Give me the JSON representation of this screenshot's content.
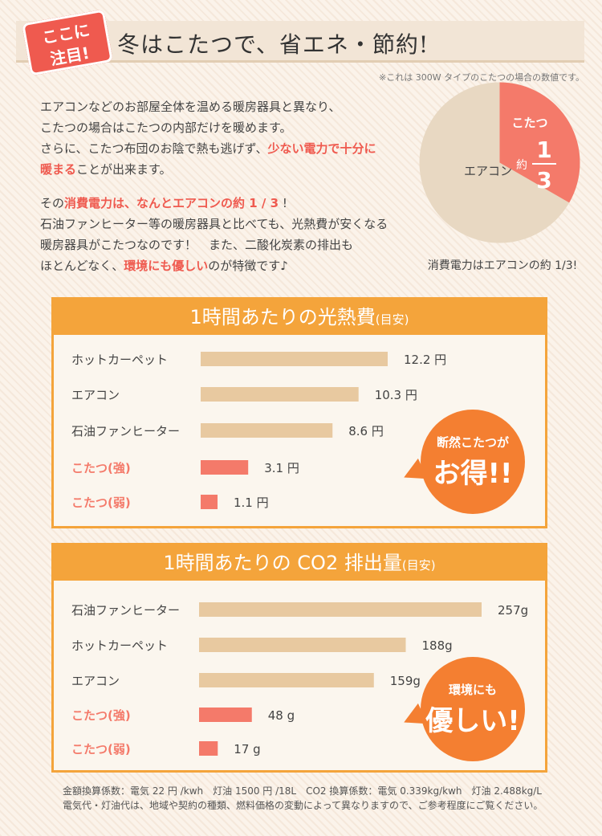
{
  "header": {
    "badge_line1": "ここに",
    "badge_line2": "注目!",
    "title": "冬はこたつで、省エネ・節約!",
    "note": "※これは 300W タイプのこたつの場合の数値です。"
  },
  "intro": {
    "p1_line1": "エアコンなどのお部屋全体を温める暖房器具と異なり、",
    "p1_line2": "こたつの場合はこたつの内部だけを暖めます。",
    "p1_line3a": "さらに、こたつ布団のお陰で熱も逃げず、",
    "p1_line3b": "少ない電力で十分に",
    "p1_line4a": "暖まる",
    "p1_line4b": "ことが出来ます。",
    "p2_line1a": "その",
    "p2_line1b": "消費電力は、なんとエアコンの約 1 / 3",
    "p2_line1c": " !",
    "p2_line2": "石油ファンヒーター等の暖房器具と比べても、光熱費が安くなる",
    "p2_line3": "暖房器具がこたつなのです！　また、二酸化炭素の排出も",
    "p2_line4a": "ほとんどなく、",
    "p2_line4b": "環境にも優しい",
    "p2_line4c": "のが特徴です♪"
  },
  "pie": {
    "base_label": "エアコン",
    "slice_label": "こたつ",
    "approx_label": "約",
    "numerator": "1",
    "denominator": "3",
    "caption": "消費電力はエアコンの約 1/3!",
    "slice_fraction": 0.333,
    "colors": {
      "base": "#e8d8c2",
      "slice": "#f47a6a"
    }
  },
  "chart_data": [
    {
      "type": "bar",
      "title": "1時間あたりの光熱費",
      "subtitle": "(目安)",
      "categories": [
        "ホットカーペット",
        "エアコン",
        "石油ファンヒーター",
        "こたつ(強)",
        "こたつ(弱)"
      ],
      "values": [
        12.2,
        10.3,
        8.6,
        3.1,
        1.1
      ],
      "value_labels": [
        "12.2 円",
        "10.3 円",
        "8.6 円",
        "3.1 円",
        "1.1 円"
      ],
      "unit": "円",
      "highlight": [
        false,
        false,
        false,
        true,
        true
      ],
      "colors": {
        "normal": "#e8c9a0",
        "highlight": "#f47a6a"
      },
      "callout": {
        "line1": "断然こたつが",
        "line2": "お得!!"
      }
    },
    {
      "type": "bar",
      "title": "1時間あたりの CO2 排出量",
      "subtitle": "(目安)",
      "categories": [
        "石油ファンヒーター",
        "ホットカーペット",
        "エアコン",
        "こたつ(強)",
        "こたつ(弱)"
      ],
      "values": [
        257,
        188,
        159,
        48,
        17
      ],
      "value_labels": [
        "257g",
        "188g",
        "159g",
        "48 g",
        "17 g"
      ],
      "unit": "g",
      "highlight": [
        false,
        false,
        false,
        true,
        true
      ],
      "colors": {
        "normal": "#e8c9a0",
        "highlight": "#f47a6a"
      },
      "callout": {
        "line1": "環境にも",
        "line2": "優しい!"
      }
    }
  ],
  "footer": {
    "line1": "金額換算係数：電気 22 円 /kwh　灯油 1500 円 /18L　CO2 換算係数：電気 0.339kg/kwh　灯油 2.488kg/L",
    "line2": "電気代・灯油代は、地域や契約の種類、燃料価格の変動によって異なりますので、ご参考程度にご覧ください。"
  }
}
